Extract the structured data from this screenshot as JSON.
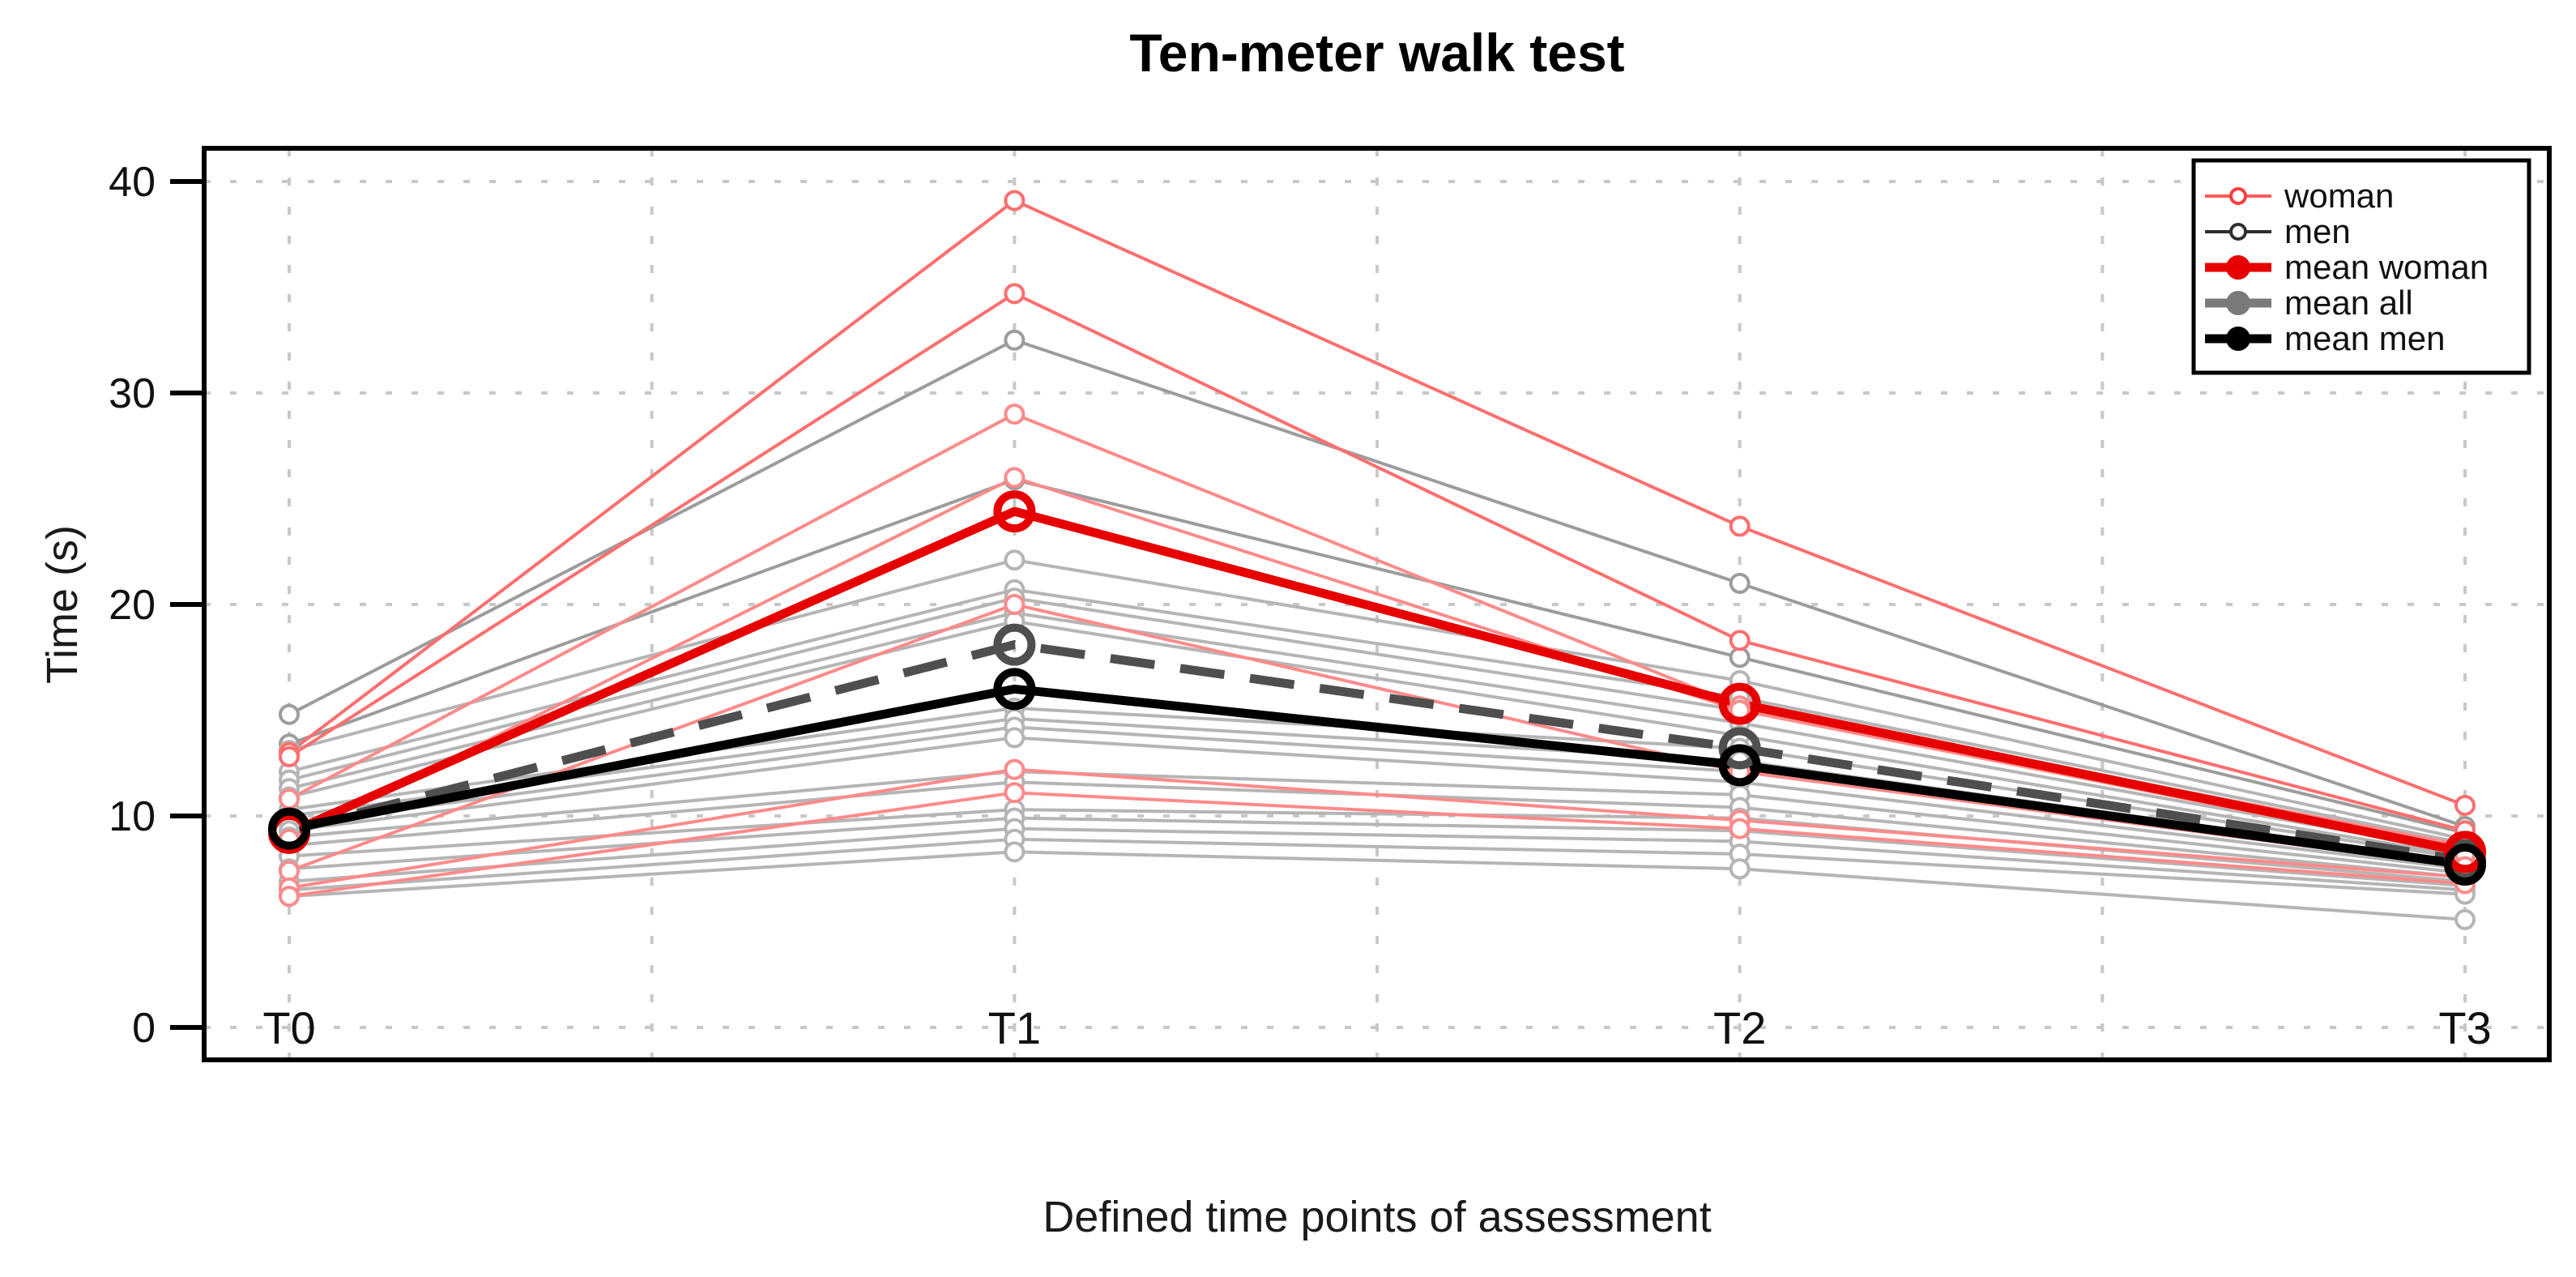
{
  "page": {
    "background": "#ffffff"
  },
  "header": {
    "title": "Ten-meter walk test"
  },
  "chart_data": {
    "type": "line",
    "title": "Ten-meter walk test",
    "xlabel": "Defined time points of assessment",
    "ylabel": "Time (s)",
    "categories": [
      "T0",
      "T1",
      "T2",
      "T3"
    ],
    "y_ticks": [
      0,
      10,
      20,
      30,
      40
    ],
    "ylim": [
      0,
      41.5
    ],
    "grid": {
      "style": "dotted",
      "horizontal_at": [
        0,
        10,
        20,
        30,
        40
      ],
      "vertical_half_steps": 7,
      "color": "#c8c8c8"
    },
    "legend_position": "top-right",
    "legend": [
      {
        "label": "woman",
        "line_color": "#ff5a5a",
        "line_width": 4,
        "marker": "open",
        "marker_color": "#ff3c3c"
      },
      {
        "label": "men",
        "line_color": "#2e2e2e",
        "line_width": 4,
        "marker": "open",
        "marker_color": "#2e2e2e"
      },
      {
        "label": "mean woman",
        "line_color": "#e60000",
        "line_width": 11,
        "marker": "filled",
        "marker_color": "#e60000"
      },
      {
        "label": "mean all",
        "line_color": "#7a7a7a",
        "line_width": 11,
        "marker": "filled",
        "marker_color": "#7a7a7a"
      },
      {
        "label": "mean men",
        "line_color": "#000000",
        "line_width": 11,
        "marker": "filled",
        "marker_color": "#000000"
      }
    ],
    "individual_series": [
      {
        "name": "man-1",
        "group": "men",
        "color": "#9c9c9c",
        "values": [
          14.8,
          32.5,
          21.0,
          9.5
        ]
      },
      {
        "name": "man-2",
        "group": "men",
        "color": "#9c9c9c",
        "values": [
          13.4,
          25.9,
          17.5,
          9.2
        ]
      },
      {
        "name": "man-3",
        "group": "men",
        "color": "#b5b5b5",
        "values": [
          13.1,
          22.1,
          16.4,
          8.9
        ]
      },
      {
        "name": "man-4",
        "group": "men",
        "color": "#b5b5b5",
        "values": [
          12.1,
          20.7,
          15.6,
          8.7
        ]
      },
      {
        "name": "man-5",
        "group": "men",
        "color": "#b5b5b5",
        "values": [
          11.7,
          20.3,
          15.0,
          8.5
        ]
      },
      {
        "name": "man-6",
        "group": "men",
        "color": "#b5b5b5",
        "values": [
          11.3,
          19.6,
          14.4,
          8.3
        ]
      },
      {
        "name": "man-7",
        "group": "men",
        "color": "#b5b5b5",
        "values": [
          10.9,
          19.2,
          13.8,
          8.1
        ]
      },
      {
        "name": "man-8",
        "group": "men",
        "color": "#b5b5b5",
        "values": [
          10.3,
          15.1,
          13.2,
          8.0
        ]
      },
      {
        "name": "man-9",
        "group": "men",
        "color": "#b5b5b5",
        "values": [
          10.0,
          14.6,
          12.6,
          7.8
        ]
      },
      {
        "name": "man-10",
        "group": "men",
        "color": "#b5b5b5",
        "values": [
          9.6,
          14.2,
          12.1,
          7.7
        ]
      },
      {
        "name": "man-11",
        "group": "men",
        "color": "#b5b5b5",
        "values": [
          9.3,
          13.7,
          11.6,
          7.5
        ]
      },
      {
        "name": "man-12",
        "group": "men",
        "color": "#b5b5b5",
        "values": [
          9.0,
          12.1,
          11.0,
          7.3
        ]
      },
      {
        "name": "man-13",
        "group": "men",
        "color": "#b5b5b5",
        "values": [
          8.6,
          11.6,
          10.4,
          7.1
        ]
      },
      {
        "name": "man-14",
        "group": "men",
        "color": "#b5b5b5",
        "values": [
          8.1,
          10.3,
          9.9,
          6.9
        ]
      },
      {
        "name": "man-15",
        "group": "men",
        "color": "#b5b5b5",
        "values": [
          7.5,
          9.9,
          9.3,
          6.7
        ]
      },
      {
        "name": "man-16",
        "group": "men",
        "color": "#b5b5b5",
        "values": [
          6.9,
          9.4,
          8.8,
          6.5
        ]
      },
      {
        "name": "man-17",
        "group": "men",
        "color": "#b5b5b5",
        "values": [
          6.5,
          8.9,
          8.2,
          6.3
        ]
      },
      {
        "name": "man-18",
        "group": "men",
        "color": "#b5b5b5",
        "values": [
          6.2,
          8.3,
          7.5,
          5.1
        ]
      },
      {
        "name": "woman-1",
        "group": "woman",
        "color": "#ff6e6e",
        "values": [
          13.0,
          39.1,
          23.7,
          10.5
        ]
      },
      {
        "name": "woman-2",
        "group": "woman",
        "color": "#ff6e6e",
        "values": [
          12.8,
          34.7,
          18.3,
          9.3
        ]
      },
      {
        "name": "woman-3",
        "group": "woman",
        "color": "#ff8a8a",
        "values": [
          10.8,
          29.0,
          15.2,
          8.6
        ]
      },
      {
        "name": "woman-4",
        "group": "woman",
        "color": "#ff8a8a",
        "values": [
          8.9,
          26.0,
          15.0,
          8.2
        ]
      },
      {
        "name": "woman-5",
        "group": "woman",
        "color": "#ff8a8a",
        "values": [
          7.4,
          20.0,
          12.1,
          7.6
        ]
      },
      {
        "name": "woman-6",
        "group": "woman",
        "color": "#ff8a8a",
        "values": [
          6.6,
          12.2,
          9.8,
          7.1
        ]
      },
      {
        "name": "woman-7",
        "group": "woman",
        "color": "#ff8a8a",
        "values": [
          6.2,
          11.1,
          9.4,
          6.8
        ]
      }
    ],
    "mean_series": [
      {
        "name": "mean-all",
        "label": "mean all",
        "color": "#4f4f4f",
        "dash": "55 32",
        "width": 11,
        "values": [
          9.3,
          18.1,
          13.2,
          7.9
        ]
      },
      {
        "name": "mean-woman",
        "label": "mean woman",
        "color": "#e60000",
        "dash": "",
        "width": 11,
        "values": [
          9.2,
          24.4,
          15.3,
          8.3
        ]
      },
      {
        "name": "mean-men",
        "label": "mean men",
        "color": "#000000",
        "dash": "",
        "width": 11,
        "values": [
          9.4,
          16.0,
          12.4,
          7.7
        ]
      }
    ]
  }
}
